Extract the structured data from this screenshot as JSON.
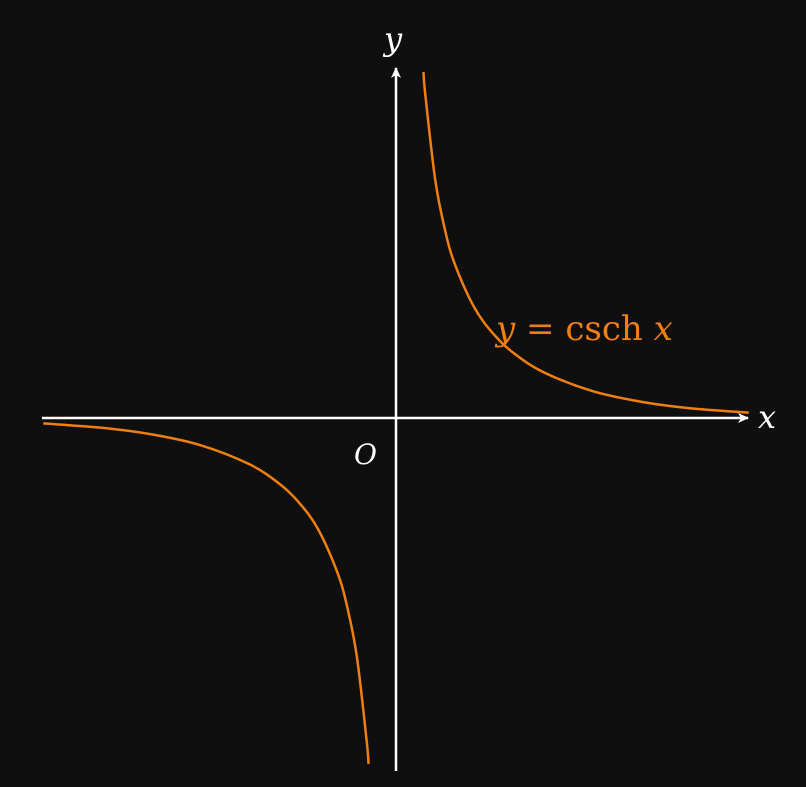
{
  "chart_data": {
    "type": "line",
    "title": "",
    "xlabel": "x",
    "ylabel": "y",
    "origin_label": "O",
    "xlim": [
      -3.6,
      3.6
    ],
    "ylim": [
      -3.6,
      3.6
    ],
    "grid": false,
    "series": [
      {
        "name": "y = csch x",
        "equation_parts": {
          "lhs": "y",
          "eq": " = ",
          "fn": "csch",
          "arg": " x"
        },
        "color": "#f07f12",
        "x": [
          -3.6,
          -3.0,
          -2.5,
          -2.0,
          -1.5,
          -1.2,
          -1.0,
          -0.8,
          -0.6,
          -0.5,
          -0.4,
          -0.3,
          -0.28,
          0.28,
          0.3,
          0.4,
          0.5,
          0.6,
          0.8,
          1.0,
          1.2,
          1.5,
          2.0,
          2.5,
          3.0,
          3.6
        ],
        "y": [
          -0.055,
          -0.1,
          -0.166,
          -0.276,
          -0.47,
          -0.663,
          -0.851,
          -1.126,
          -1.571,
          -1.919,
          -2.432,
          -3.29,
          -3.53,
          3.53,
          3.29,
          2.432,
          1.919,
          1.571,
          1.126,
          0.851,
          0.663,
          0.47,
          0.276,
          0.166,
          0.1,
          0.055
        ]
      }
    ]
  },
  "colors": {
    "background": "#0f0f0f",
    "axes": "#ffffff",
    "curve": "#f07f12"
  }
}
